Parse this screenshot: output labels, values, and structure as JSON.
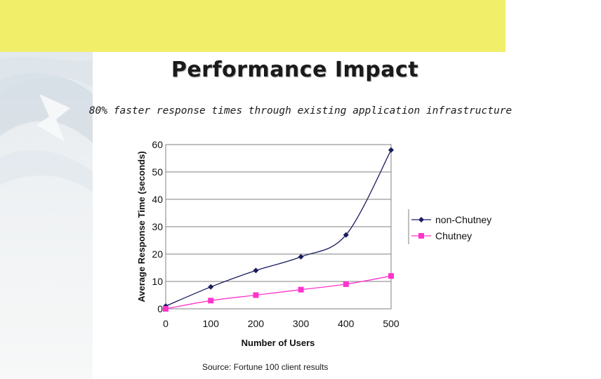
{
  "slide": {
    "title": "Performance Impact",
    "subtitle": "80% faster response times through existing application infrastructure",
    "source": "Source:  Fortune 100 client results"
  },
  "colors": {
    "band": "#f1ee6a",
    "series_non_chutney": "#1a1d5e",
    "series_chutney": "#ff33cc"
  },
  "chart_data": {
    "type": "line",
    "x": [
      0,
      100,
      200,
      300,
      400,
      500
    ],
    "series": [
      {
        "name": "non-Chutney",
        "values": [
          1,
          8,
          14,
          19,
          27,
          58
        ],
        "marker": "diamond",
        "color": "#1a1d5e"
      },
      {
        "name": "Chutney",
        "values": [
          0,
          3,
          5,
          7,
          9,
          12
        ],
        "marker": "square",
        "color": "#ff33cc"
      }
    ],
    "xlabel": "Number of Users",
    "ylabel": "Average Response Time (seconds)",
    "xlim": [
      0,
      500
    ],
    "ylim": [
      0,
      60
    ],
    "xticks": [
      "0",
      "100",
      "200",
      "300",
      "400",
      "500"
    ],
    "yticks": [
      "0",
      "10",
      "20",
      "30",
      "40",
      "50",
      "60"
    ],
    "grid": "horizontal",
    "legend": "right"
  }
}
